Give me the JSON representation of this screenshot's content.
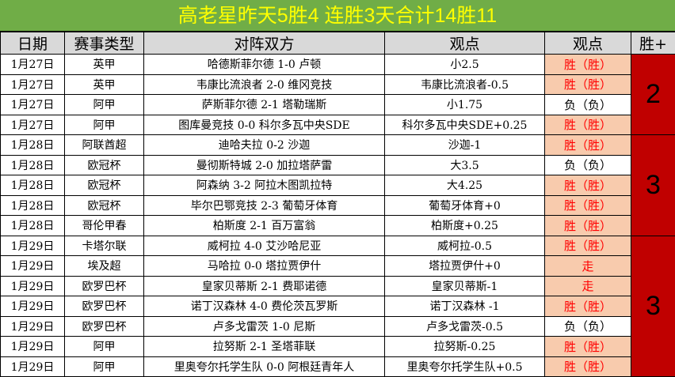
{
  "title": "高老星昨天5胜4  连胜3天合计14胜11",
  "headers": [
    "日期",
    "赛事类型",
    "对阵双方",
    "观点",
    "观点",
    "胜+"
  ],
  "colors": {
    "title_bg": "#70ad47",
    "title_text": "#ffff00",
    "header_bg": "#d9d9d9",
    "win_bg": "#f8cbad",
    "win_text": "#ff0000",
    "group_bg": "#c00000"
  },
  "rows": [
    {
      "date": "1月27日",
      "league": "英甲",
      "match": "哈德斯菲尔德 1-0 卢顿",
      "pick": "小2.5",
      "result": "胜（胜）",
      "status": "win"
    },
    {
      "date": "1月27日",
      "league": "英甲",
      "match": "韦康比流浪者 2-0 维冈竞技",
      "pick": "韦康比流浪者-0.5",
      "result": "胜（胜）",
      "status": "win"
    },
    {
      "date": "1月27日",
      "league": "阿甲",
      "match": "萨斯菲尔德 2-1 塔勒瑞斯",
      "pick": "小1.75",
      "result": "负（负）",
      "status": "loss"
    },
    {
      "date": "1月27日",
      "league": "阿甲",
      "match": "图库曼竞技 0-0 科尔多瓦中央SDE",
      "pick": "科尔多瓦中央SDE+0.25",
      "result": "胜（胜）",
      "status": "win"
    },
    {
      "date": "1月28日",
      "league": "阿联酋超",
      "match": "迪哈夫拉 0-2 沙迦",
      "pick": "沙迦-1",
      "result": "胜（胜）",
      "status": "win"
    },
    {
      "date": "1月28日",
      "league": "欧冠杯",
      "match": "曼彻斯特城 2-0 加拉塔萨雷",
      "pick": "大3.5",
      "result": "负（负）",
      "status": "loss"
    },
    {
      "date": "1月28日",
      "league": "欧冠杯",
      "match": "阿森纳 3-2 阿拉木图凯拉特",
      "pick": "大4.25",
      "result": "胜（胜）",
      "status": "win"
    },
    {
      "date": "1月28日",
      "league": "欧冠杯",
      "match": "毕尔巴鄂竞技 2-3 葡萄牙体育",
      "pick": "葡萄牙体育+0",
      "result": "胜（胜）",
      "status": "win"
    },
    {
      "date": "1月28日",
      "league": "哥伦甲春",
      "match": "柏斯度 2-1 百万富翁",
      "pick": "柏斯度+0.25",
      "result": "胜（胜）",
      "status": "win"
    },
    {
      "date": "1月29日",
      "league": "卡塔尔联",
      "match": "威柯拉 4-0 艾沙哈尼亚",
      "pick": "威柯拉-0.5",
      "result": "胜（胜）",
      "status": "win"
    },
    {
      "date": "1月29日",
      "league": "埃及超",
      "match": "马哈拉 0-0 塔拉贾伊什",
      "pick": "塔拉贾伊什+0",
      "result": "走",
      "status": "draw"
    },
    {
      "date": "1月29日",
      "league": "欧罗巴杯",
      "match": "皇家贝蒂斯 2-1 费耶诺德",
      "pick": "皇家贝蒂斯-1",
      "result": "走",
      "status": "draw"
    },
    {
      "date": "1月29日",
      "league": "欧罗巴杯",
      "match": "诺丁汉森林 4-0 费伦茨瓦罗斯",
      "pick": "诺丁汉森林 -1",
      "result": "胜（胜）",
      "status": "win"
    },
    {
      "date": "1月29日",
      "league": "欧罗巴杯",
      "match": "卢多戈雷茨 1-0 尼斯",
      "pick": "卢多戈雷茨-0.5",
      "result": "负（负）",
      "status": "loss"
    },
    {
      "date": "1月29日",
      "league": "阿甲",
      "match": "拉努斯 2-1 圣塔菲联",
      "pick": "拉努斯-0.25",
      "result": "胜（胜）",
      "status": "win"
    },
    {
      "date": "1月29日",
      "league": "阿甲",
      "match": "里奥夸尔托学生队 0-0 阿根廷青年人",
      "pick": "里奥夸尔托学生队+0.5",
      "result": "胜（胜）",
      "status": "win"
    }
  ],
  "groups": [
    {
      "start": 0,
      "span": 4,
      "wins": "2"
    },
    {
      "start": 4,
      "span": 5,
      "wins": "3"
    },
    {
      "start": 9,
      "span": 7,
      "wins": "3"
    }
  ]
}
